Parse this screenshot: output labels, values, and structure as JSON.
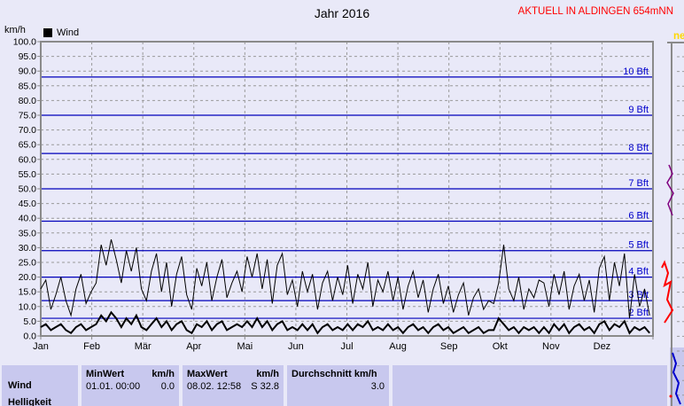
{
  "window": {
    "title": "Jahr 2016",
    "header_right": "AKTUELL IN ALDINGEN 654mNN",
    "header_right_color": "#ff0000"
  },
  "legend": {
    "label": "Wind",
    "swatch_color": "#000000"
  },
  "axis": {
    "unit_label": "km/h",
    "y_min": 0,
    "y_max": 100,
    "y_step": 5,
    "months": [
      "Jan",
      "Feb",
      "Mär",
      "Apr",
      "Mai",
      "Jun",
      "Jul",
      "Aug",
      "Sep",
      "Okt",
      "Nov",
      "Dez"
    ]
  },
  "beaufort_lines": [
    {
      "value": 6,
      "label": "2 Bft"
    },
    {
      "value": 12,
      "label": "3 Bft"
    },
    {
      "value": 20,
      "label": "4 Bft"
    },
    {
      "value": 29,
      "label": "5 Bft"
    },
    {
      "value": 39,
      "label": "6 Bft"
    },
    {
      "value": 50,
      "label": "7 Bft"
    },
    {
      "value": 62,
      "label": "8 Bft"
    },
    {
      "value": 75,
      "label": "9 Bft"
    },
    {
      "value": 88,
      "label": "10 Bft"
    }
  ],
  "chart_data": {
    "type": "line",
    "title": "Jahr 2016",
    "ylabel": "km/h",
    "ylim": [
      0,
      100
    ],
    "x_categories": [
      "Jan",
      "Feb",
      "Mär",
      "Apr",
      "Mai",
      "Jun",
      "Jul",
      "Aug",
      "Sep",
      "Okt",
      "Nov",
      "Dez"
    ],
    "grid": "dashed every 5 km/h horizontal, month boundaries vertical, solid blue lines at Beaufort thresholds",
    "legend_position": "top-left",
    "sample_step_days": 3,
    "series": [
      {
        "name": "Wind Tagesspitze (geschätzt aus Grafik)",
        "color": "#000000",
        "width": 1,
        "values": [
          16,
          19,
          9,
          14,
          20,
          12,
          7,
          16,
          21,
          11,
          15,
          18,
          31,
          24,
          32.8,
          26,
          18,
          29,
          22,
          30,
          16,
          12,
          22,
          28,
          15,
          25,
          10,
          21,
          27,
          14,
          9,
          23,
          17,
          25,
          12,
          20,
          26,
          13,
          18,
          22,
          15,
          27,
          20,
          28,
          16,
          26,
          11,
          24,
          28,
          14,
          19,
          10,
          22,
          15,
          21,
          9,
          18,
          22,
          12,
          20,
          14,
          24,
          11,
          21,
          16,
          25,
          10,
          19,
          15,
          22,
          12,
          20,
          9,
          17,
          22,
          13,
          19,
          8,
          16,
          21,
          11,
          17,
          8,
          14,
          18,
          7,
          13,
          16,
          9,
          12,
          11,
          18,
          31,
          16,
          12,
          20,
          9,
          16,
          13,
          19,
          18,
          10,
          21,
          14,
          22,
          9,
          17,
          21,
          12,
          19,
          8,
          23,
          27,
          12,
          25,
          17,
          28,
          6,
          21,
          10,
          16,
          7
        ]
      },
      {
        "name": "Wind Tagesmittel (geschätzt aus Grafik)",
        "color": "#000000",
        "width": 2,
        "values": [
          3,
          4,
          2,
          3,
          4,
          2,
          1,
          3,
          4,
          2,
          3,
          4,
          7,
          5,
          8,
          6,
          3,
          6,
          4,
          7,
          3,
          2,
          4,
          6,
          3,
          5,
          2,
          4,
          5,
          2,
          1,
          4,
          3,
          5,
          2,
          4,
          5,
          2,
          3,
          4,
          3,
          5,
          3,
          6,
          3,
          5,
          2,
          4,
          5,
          2,
          3,
          2,
          4,
          2,
          4,
          1,
          3,
          4,
          2,
          3,
          2,
          4,
          2,
          4,
          3,
          5,
          2,
          3,
          2,
          4,
          2,
          3,
          1,
          3,
          4,
          2,
          3,
          1,
          3,
          4,
          2,
          3,
          1,
          2,
          3,
          1,
          2,
          3,
          1,
          2,
          2,
          6,
          4,
          2,
          3,
          1,
          3,
          2,
          3,
          1,
          3,
          1,
          4,
          2,
          4,
          1,
          3,
          4,
          2,
          3,
          1,
          4,
          5,
          2,
          4,
          3,
          5,
          1,
          3,
          2,
          3,
          1
        ]
      }
    ]
  },
  "summary_table": {
    "row_label": "Wind",
    "next_row_label": "Helligkeit",
    "min": {
      "header": "MinWert",
      "unit": "km/h",
      "datetime": "01.01.  00:00",
      "value": "0.0"
    },
    "max": {
      "header": "MaxWert",
      "unit": "km/h",
      "datetime": "08.02.  12:58",
      "value": "S 32.8"
    },
    "avg": {
      "header": "Durchschnitt km/h",
      "value": "3.0"
    }
  },
  "side_panel": {
    "title_fragment": "ne",
    "title_color": "#ffd700",
    "traces": [
      {
        "color": "#800080",
        "width": 1.5,
        "points": [
          [
            755,
            186
          ],
          [
            759,
            196
          ],
          [
            753,
            206
          ],
          [
            760,
            218
          ],
          [
            754,
            230
          ],
          [
            759,
            243
          ]
        ]
      },
      {
        "color": "#ff0000",
        "width": 2,
        "points": [
          [
            747,
            302
          ],
          [
            750,
            296
          ],
          [
            754,
            308
          ],
          [
            750,
            322
          ],
          [
            757,
            318
          ],
          [
            753,
            338
          ],
          [
            759,
            350
          ],
          [
            750,
            364
          ]
        ]
      },
      {
        "color": "#0000cc",
        "width": 2,
        "points": [
          [
            759,
            398
          ],
          [
            763,
            410
          ],
          [
            760,
            420
          ],
          [
            766,
            432
          ],
          [
            763,
            444
          ],
          [
            768,
            456
          ]
        ]
      }
    ],
    "dot_color": "#ff0000"
  },
  "colors": {
    "page_bg": "#e9e9f8",
    "frame": "#8a8a8a",
    "grid_dashed": "#9a9a9a",
    "beaufort_line": "#0000bb",
    "beaufort_label": "#0000cc",
    "table_bg": "#c8c8ee",
    "trace": "#000000"
  }
}
